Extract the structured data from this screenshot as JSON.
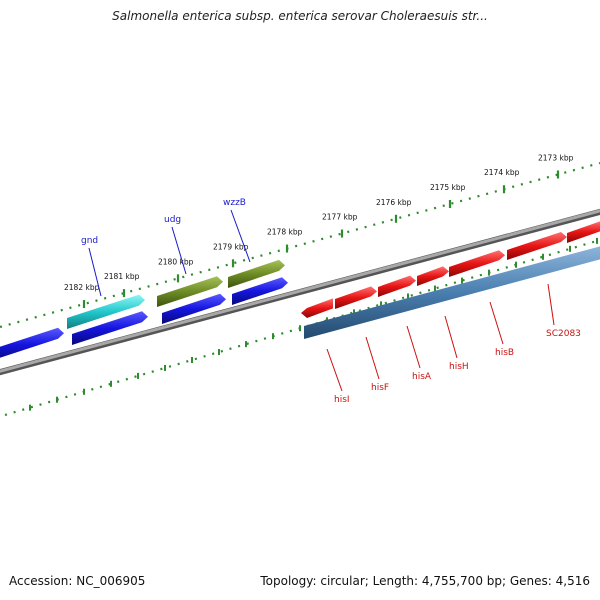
{
  "title": "Salmonella enterica subsp. enterica serovar Choleraesuis str...",
  "footer": {
    "accession": "Accession: NC_006905",
    "summary": "Topology: circular; Length: 4,755,700 bp; Genes: 4,516"
  },
  "ruler": {
    "unit": "kbp",
    "ticks": [
      {
        "kbp": 2182,
        "label": "2182 kbp"
      },
      {
        "kbp": 2181,
        "label": "2181 kbp"
      },
      {
        "kbp": 2180,
        "label": "2180 kbp"
      },
      {
        "kbp": 2179,
        "label": "2179 kbp"
      },
      {
        "kbp": 2178,
        "label": "2178 kbp"
      },
      {
        "kbp": 2177,
        "label": "2177 kbp"
      },
      {
        "kbp": 2176,
        "label": "2176 kbp"
      },
      {
        "kbp": 2175,
        "label": "2175 kbp"
      },
      {
        "kbp": 2174,
        "label": "2174 kbp"
      },
      {
        "kbp": 2173,
        "label": "2173 kbp"
      }
    ]
  },
  "colors": {
    "backbone": "#8a8a8a",
    "ruler": "#2e8b2e",
    "cds_blue": "#1515e0",
    "cds_cyan": "#22c8cc",
    "cds_olive": "#6e8c25",
    "cds_red": "#e81515",
    "operon_steel": "#4a7fb0",
    "label_blue": "#1a1acc",
    "label_red": "#cc1111"
  },
  "genes": [
    {
      "name": "gnd",
      "color": "label_blue"
    },
    {
      "name": "udg",
      "color": "label_blue"
    },
    {
      "name": "wzzB",
      "color": "label_blue"
    },
    {
      "name": "hisI",
      "color": "label_red"
    },
    {
      "name": "hisF",
      "color": "label_red"
    },
    {
      "name": "hisA",
      "color": "label_red"
    },
    {
      "name": "hisH",
      "color": "label_red"
    },
    {
      "name": "hisB",
      "color": "label_red"
    },
    {
      "name": "SC2083",
      "color": "label_red"
    }
  ]
}
